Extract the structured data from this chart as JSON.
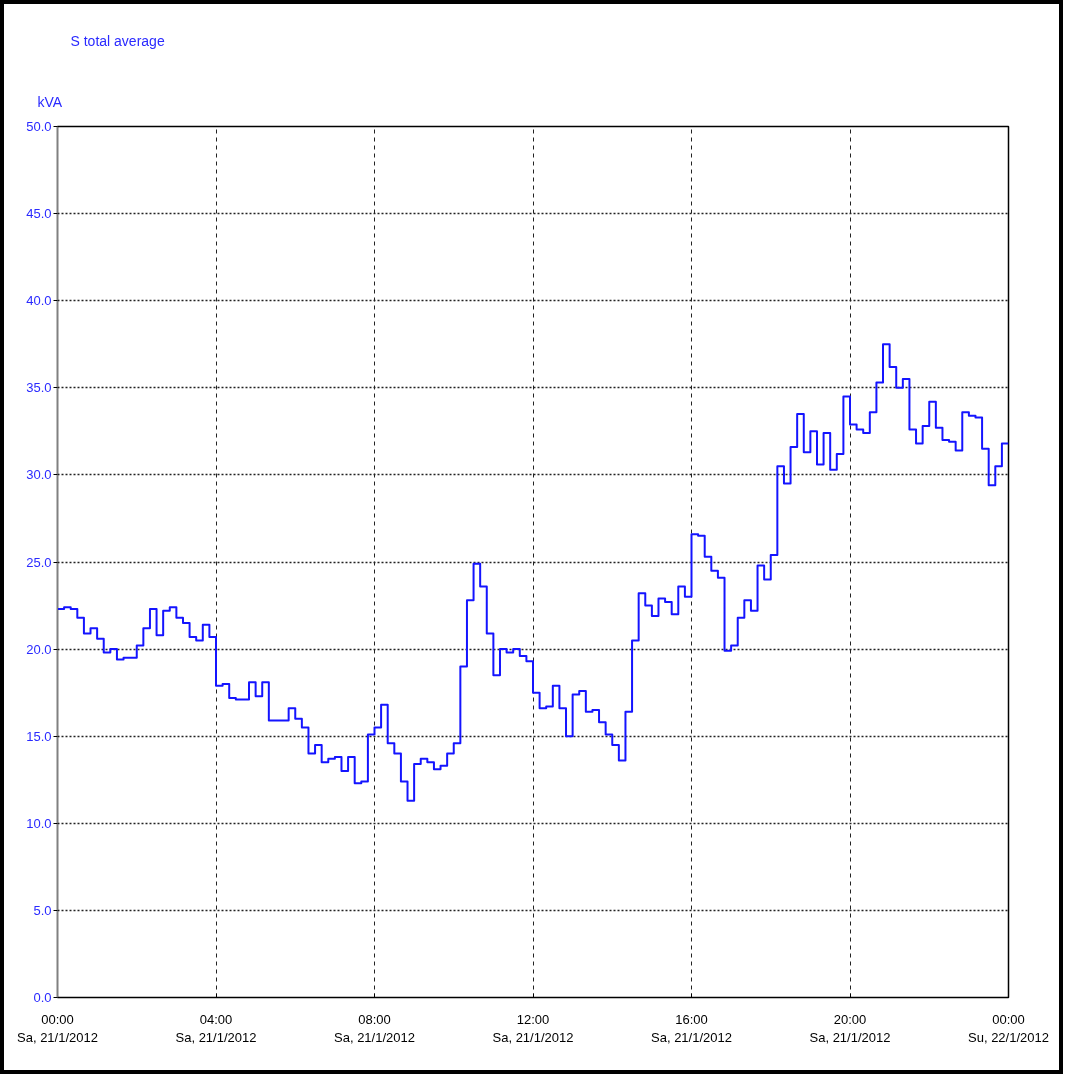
{
  "chart_data": {
    "type": "step",
    "title": "S total average",
    "ylabel": "kVA",
    "x": [
      "2012-01-21T00:00",
      "2012-01-21T00:10",
      "2012-01-21T00:20",
      "2012-01-21T00:30",
      "2012-01-21T00:40",
      "2012-01-21T00:50",
      "2012-01-21T01:00",
      "2012-01-21T01:10",
      "2012-01-21T01:20",
      "2012-01-21T01:30",
      "2012-01-21T01:40",
      "2012-01-21T01:50",
      "2012-01-21T02:00",
      "2012-01-21T02:10",
      "2012-01-21T02:20",
      "2012-01-21T02:30",
      "2012-01-21T02:40",
      "2012-01-21T02:50",
      "2012-01-21T03:00",
      "2012-01-21T03:10",
      "2012-01-21T03:20",
      "2012-01-21T03:30",
      "2012-01-21T03:40",
      "2012-01-21T03:50",
      "2012-01-21T04:00",
      "2012-01-21T04:10",
      "2012-01-21T04:20",
      "2012-01-21T04:30",
      "2012-01-21T04:40",
      "2012-01-21T04:50",
      "2012-01-21T05:00",
      "2012-01-21T05:10",
      "2012-01-21T05:20",
      "2012-01-21T05:30",
      "2012-01-21T05:40",
      "2012-01-21T05:50",
      "2012-01-21T06:00",
      "2012-01-21T06:10",
      "2012-01-21T06:20",
      "2012-01-21T06:30",
      "2012-01-21T06:40",
      "2012-01-21T06:50",
      "2012-01-21T07:00",
      "2012-01-21T07:10",
      "2012-01-21T07:20",
      "2012-01-21T07:30",
      "2012-01-21T07:40",
      "2012-01-21T07:50",
      "2012-01-21T08:00",
      "2012-01-21T08:10",
      "2012-01-21T08:20",
      "2012-01-21T08:30",
      "2012-01-21T08:40",
      "2012-01-21T08:50",
      "2012-01-21T09:00",
      "2012-01-21T09:10",
      "2012-01-21T09:20",
      "2012-01-21T09:30",
      "2012-01-21T09:40",
      "2012-01-21T09:50",
      "2012-01-21T10:00",
      "2012-01-21T10:10",
      "2012-01-21T10:20",
      "2012-01-21T10:30",
      "2012-01-21T10:40",
      "2012-01-21T10:50",
      "2012-01-21T11:00",
      "2012-01-21T11:10",
      "2012-01-21T11:20",
      "2012-01-21T11:30",
      "2012-01-21T11:40",
      "2012-01-21T11:50",
      "2012-01-21T12:00",
      "2012-01-21T12:10",
      "2012-01-21T12:20",
      "2012-01-21T12:30",
      "2012-01-21T12:40",
      "2012-01-21T12:50",
      "2012-01-21T13:00",
      "2012-01-21T13:10",
      "2012-01-21T13:20",
      "2012-01-21T13:30",
      "2012-01-21T13:40",
      "2012-01-21T13:50",
      "2012-01-21T14:00",
      "2012-01-21T14:10",
      "2012-01-21T14:20",
      "2012-01-21T14:30",
      "2012-01-21T14:40",
      "2012-01-21T14:50",
      "2012-01-21T15:00",
      "2012-01-21T15:10",
      "2012-01-21T15:20",
      "2012-01-21T15:30",
      "2012-01-21T15:40",
      "2012-01-21T15:50",
      "2012-01-21T16:00",
      "2012-01-21T16:10",
      "2012-01-21T16:20",
      "2012-01-21T16:30",
      "2012-01-21T16:40",
      "2012-01-21T16:50",
      "2012-01-21T17:00",
      "2012-01-21T17:10",
      "2012-01-21T17:20",
      "2012-01-21T17:30",
      "2012-01-21T17:40",
      "2012-01-21T17:50",
      "2012-01-21T18:00",
      "2012-01-21T18:10",
      "2012-01-21T18:20",
      "2012-01-21T18:30",
      "2012-01-21T18:40",
      "2012-01-21T18:50",
      "2012-01-21T19:00",
      "2012-01-21T19:10",
      "2012-01-21T19:20",
      "2012-01-21T19:30",
      "2012-01-21T19:40",
      "2012-01-21T19:50",
      "2012-01-21T20:00",
      "2012-01-21T20:10",
      "2012-01-21T20:20",
      "2012-01-21T20:30",
      "2012-01-21T20:40",
      "2012-01-21T20:50",
      "2012-01-21T21:00",
      "2012-01-21T21:10",
      "2012-01-21T21:20",
      "2012-01-21T21:30",
      "2012-01-21T21:40",
      "2012-01-21T21:50",
      "2012-01-21T22:00",
      "2012-01-21T22:10",
      "2012-01-21T22:20",
      "2012-01-21T22:30",
      "2012-01-21T22:40",
      "2012-01-21T22:50",
      "2012-01-21T23:00",
      "2012-01-21T23:10",
      "2012-01-21T23:20",
      "2012-01-21T23:30",
      "2012-01-21T23:40",
      "2012-01-21T23:50",
      "2012-01-22T00:00"
    ],
    "series": [
      {
        "color": "#1414ff",
        "values": [
          22.3,
          22.4,
          22.3,
          21.8,
          20.9,
          21.2,
          20.6,
          19.8,
          20.0,
          19.4,
          19.5,
          19.5,
          20.2,
          21.2,
          22.3,
          20.8,
          22.2,
          22.4,
          21.8,
          21.5,
          20.7,
          20.5,
          21.4,
          20.7,
          17.9,
          18.0,
          17.2,
          17.1,
          17.1,
          18.1,
          17.3,
          18.1,
          15.9,
          15.9,
          15.9,
          16.6,
          16.0,
          15.5,
          14.0,
          14.5,
          13.5,
          13.7,
          13.8,
          13.0,
          13.8,
          12.3,
          12.4,
          15.1,
          15.5,
          16.8,
          14.6,
          14.0,
          12.4,
          11.3,
          13.4,
          13.7,
          13.5,
          13.1,
          13.3,
          14.0,
          14.6,
          19.0,
          22.8,
          24.9,
          23.6,
          20.9,
          18.5,
          20.0,
          19.8,
          20.0,
          19.6,
          19.3,
          17.5,
          16.6,
          16.7,
          17.9,
          16.6,
          15.0,
          17.4,
          17.6,
          16.4,
          16.5,
          15.8,
          15.1,
          14.5,
          13.6,
          16.4,
          20.5,
          23.2,
          22.5,
          21.9,
          22.9,
          22.7,
          22.0,
          23.6,
          23.0,
          26.6,
          26.5,
          25.3,
          24.5,
          24.1,
          19.9,
          20.2,
          21.8,
          22.8,
          22.2,
          24.8,
          24.0,
          25.4,
          30.5,
          29.5,
          31.6,
          33.5,
          31.3,
          32.5,
          30.6,
          32.4,
          30.3,
          31.2,
          34.5,
          32.9,
          32.6,
          32.4,
          33.6,
          35.3,
          37.5,
          36.2,
          35.0,
          35.5,
          32.6,
          31.8,
          32.8,
          34.2,
          32.7,
          32.0,
          31.9,
          31.4,
          33.6,
          33.4,
          33.3,
          31.5,
          29.4,
          30.5,
          31.8,
          31.8
        ]
      }
    ],
    "xlim": [
      "2012-01-21T00:00",
      "2012-01-22T00:00"
    ],
    "xticks": [
      {
        "value": "2012-01-21T00:00",
        "label": "00:00\nSa, 21/1/2012"
      },
      {
        "value": "2012-01-21T04:00",
        "label": "04:00\nSa, 21/1/2012"
      },
      {
        "value": "2012-01-21T08:00",
        "label": "08:00\nSa, 21/1/2012"
      },
      {
        "value": "2012-01-21T12:00",
        "label": "12:00\nSa, 21/1/2012"
      },
      {
        "value": "2012-01-21T16:00",
        "label": "16:00\nSa, 21/1/2012"
      },
      {
        "value": "2012-01-21T20:00",
        "label": "20:00\nSa, 21/1/2012"
      },
      {
        "value": "2012-01-22T00:00",
        "label": "00:00\nSu, 22/1/2012"
      }
    ],
    "ylim": [
      0,
      50
    ],
    "yticks": [
      {
        "value": 0,
        "label": "0.0"
      },
      {
        "value": 5,
        "label": "5.0"
      },
      {
        "value": 10,
        "label": "10.0"
      },
      {
        "value": 15,
        "label": "15.0"
      },
      {
        "value": 20,
        "label": "20.0"
      },
      {
        "value": 25,
        "label": "25.0"
      },
      {
        "value": 30,
        "label": "30.0"
      },
      {
        "value": 35,
        "label": "35.0"
      },
      {
        "value": 40,
        "label": "40.0"
      },
      {
        "value": 45,
        "label": "45.0"
      },
      {
        "value": 50,
        "label": "50.0"
      }
    ],
    "grid": true
  }
}
